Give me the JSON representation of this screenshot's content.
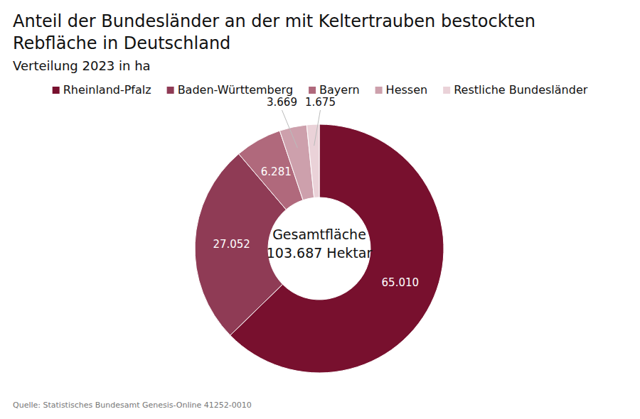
{
  "chart_data": {
    "type": "pie",
    "title": "Anteil der Bundesländer an der mit Keltertrauben bestockten Rebfläche in Deutschland",
    "subtitle": "Verteilung 2023 in ha",
    "categories": [
      "Rheinland-Pfalz",
      "Baden-Württemberg",
      "Bayern",
      "Hessen",
      "Restliche Bundesländer"
    ],
    "values": [
      65010,
      27052,
      6281,
      3669,
      1675
    ],
    "value_labels": [
      "65.010",
      "27.052",
      "6.281",
      "3.669",
      "1.675"
    ],
    "colors": [
      "#78102e",
      "#8f3b55",
      "#b0697c",
      "#cda0ac",
      "#ead2d8"
    ],
    "data_labels": true,
    "legend": "top",
    "annotations": [
      "Gesamtfläche",
      "103.687 Hektar"
    ],
    "source": "Quelle: Statistisches Bundesamt Genesis-Online 41252-0010"
  }
}
